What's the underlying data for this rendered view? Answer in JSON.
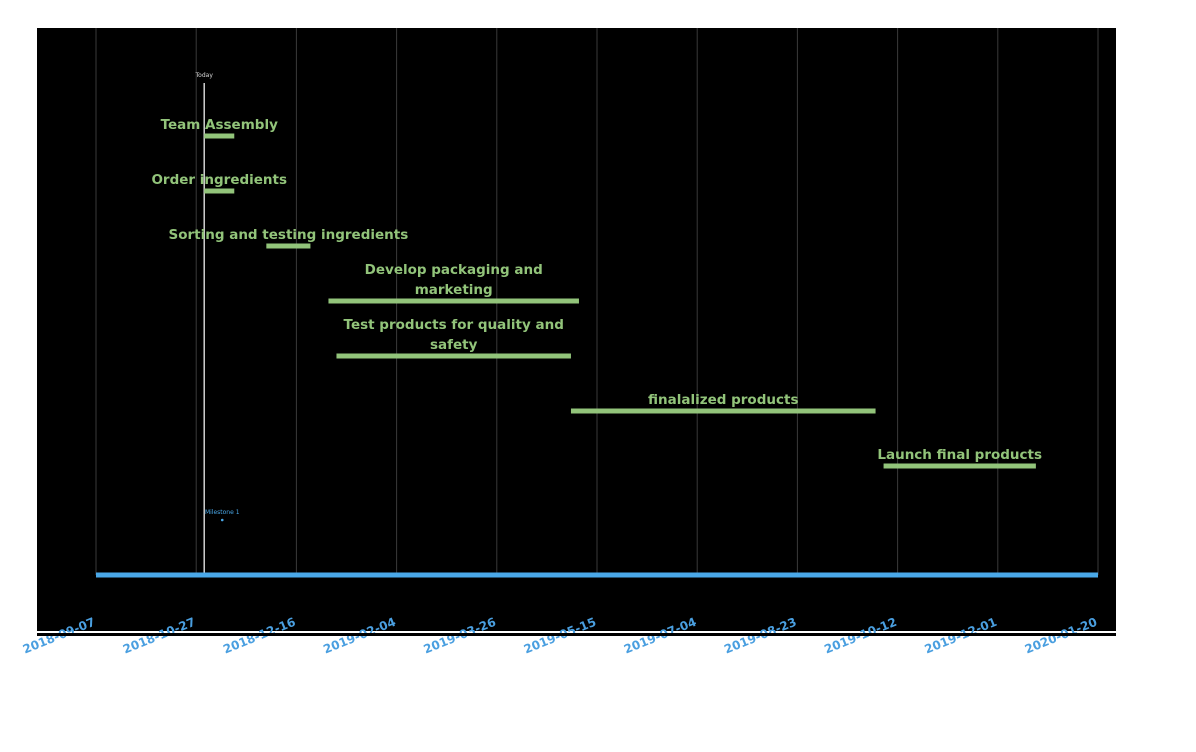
{
  "chart_data": {
    "type": "gantt",
    "x_axis": {
      "type": "date",
      "range": [
        "2018-09-07",
        "2020-01-20"
      ],
      "ticks": [
        "2018-09-07",
        "2018-10-27",
        "2018-12-16",
        "2019-02-04",
        "2019-03-26",
        "2019-05-15",
        "2019-07-04",
        "2019-08-23",
        "2019-10-12",
        "2019-12-01",
        "2020-01-20"
      ],
      "tick_label_rotation": "-22deg",
      "grid": true
    },
    "today_marker": {
      "label": "Today",
      "date": "2018-10-31"
    },
    "tasks": [
      {
        "label": [
          "Team Assembly"
        ],
        "start": "2018-10-31",
        "end": "2018-11-15"
      },
      {
        "label": [
          "Order ingredients"
        ],
        "start": "2018-10-31",
        "end": "2018-11-15"
      },
      {
        "label": [
          "Sorting and testing ingredients"
        ],
        "start": "2018-12-01",
        "end": "2018-12-23"
      },
      {
        "label": [
          "Develop packaging and",
          "marketing"
        ],
        "start": "2019-01-01",
        "end": "2019-05-06"
      },
      {
        "label": [
          "Test products for quality and",
          "safety"
        ],
        "start": "2019-01-05",
        "end": "2019-05-02"
      },
      {
        "label": [
          "finalalized products"
        ],
        "start": "2019-05-02",
        "end": "2019-10-01"
      },
      {
        "label": [
          "Launch final products"
        ],
        "start": "2019-10-05",
        "end": "2019-12-20"
      }
    ],
    "milestones": [
      {
        "label": "Milestone 1",
        "date": "2018-11-09"
      }
    ],
    "colors": {
      "background": "#000000",
      "task_bar": "#92c47a",
      "task_label": "#92c47a",
      "axis": "#4aa8e8",
      "tick_label": "#4a9fe0",
      "grid": "#3a3a3a",
      "today_line": "#d0d0d0",
      "milestone": "#4aa8e8"
    }
  }
}
